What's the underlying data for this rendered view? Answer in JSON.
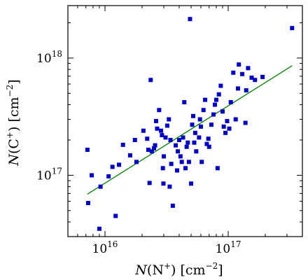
{
  "chart_data": {
    "type": "scatter",
    "title": "",
    "xlabel_parts": {
      "var": "N",
      "open": "(N",
      "sup": "+",
      "close": ")",
      "unit": " [cm",
      "unit_sup": "−2",
      "unit_close": "]"
    },
    "ylabel_parts": {
      "var": "N",
      "open": "(C",
      "sup": "+",
      "close": ")",
      "unit": " [cm",
      "unit_sup": "−2",
      "unit_close": "]"
    },
    "x_scale": "log",
    "y_scale": "log",
    "xlim": [
      5000000000000000.0,
      4e+17
    ],
    "ylim": [
      3e+16,
      2.8e+18
    ],
    "x_ticks": [
      {
        "value": 1e+16,
        "base": "10",
        "exp": "16"
      },
      {
        "value": 1e+17,
        "base": "10",
        "exp": "17"
      }
    ],
    "y_ticks": [
      {
        "value": 1e+17,
        "base": "10",
        "exp": "17"
      },
      {
        "value": 1e+18,
        "base": "10",
        "exp": "18"
      }
    ],
    "grid": false,
    "marker_color": "#0000cc",
    "fit_color": "#118811",
    "fit_line": {
      "x": [
        7200000000000000.0,
        3.3e+17
      ],
      "y": [
        6.9e+16,
        8.6e+17
      ]
    },
    "points": [
      {
        "x": 7200000000000000.0,
        "y": 1.65e+17
      },
      {
        "x": 7300000000000000.0,
        "y": 5.8e+16
      },
      {
        "x": 7800000000000000.0,
        "y": 1e+17
      },
      {
        "x": 9000000000000000.0,
        "y": 3.5e+16
      },
      {
        "x": 9200000000000000.0,
        "y": 8e+16
      },
      {
        "x": 1.07e+16,
        "y": 9.8e+16
      },
      {
        "x": 1.15e+16,
        "y": 1.18e+17
      },
      {
        "x": 1.22e+16,
        "y": 4.5e+16
      },
      {
        "x": 1.3e+16,
        "y": 1.23e+17
      },
      {
        "x": 1.4e+16,
        "y": 1.82e+17
      },
      {
        "x": 1.6e+16,
        "y": 1.48e+17
      },
      {
        "x": 1.75e+16,
        "y": 2e+17
      },
      {
        "x": 1.8e+16,
        "y": 1.3e+17
      },
      {
        "x": 2.05e+16,
        "y": 2.4e+17
      },
      {
        "x": 2.2e+16,
        "y": 2.05e+17
      },
      {
        "x": 2.25e+16,
        "y": 1.65e+17
      },
      {
        "x": 2.3e+16,
        "y": 8.6e+16
      },
      {
        "x": 2.35e+16,
        "y": 6.5e+17
      },
      {
        "x": 2.4e+16,
        "y": 1.6e+17
      },
      {
        "x": 2.5e+16,
        "y": 1.7e+17
      },
      {
        "x": 2.55e+16,
        "y": 1.8e+17
      },
      {
        "x": 2.6e+16,
        "y": 2.9e+17
      },
      {
        "x": 2.65e+16,
        "y": 2.5e+17
      },
      {
        "x": 2.75e+16,
        "y": 3.6e+17
      },
      {
        "x": 2.85e+16,
        "y": 2.4e+17
      },
      {
        "x": 2.9e+16,
        "y": 2.2e+17
      },
      {
        "x": 2.95e+16,
        "y": 1.15e+17
      },
      {
        "x": 2.98e+16,
        "y": 8.5e+16
      },
      {
        "x": 3e+16,
        "y": 1.45e+17
      },
      {
        "x": 3.1e+16,
        "y": 2.1e+17
      },
      {
        "x": 3.2e+16,
        "y": 2.65e+17
      },
      {
        "x": 3.3e+16,
        "y": 3e+17
      },
      {
        "x": 3.35e+16,
        "y": 8e+16
      },
      {
        "x": 3.4e+16,
        "y": 2e+17
      },
      {
        "x": 3.45e+16,
        "y": 1.25e+17
      },
      {
        "x": 3.55e+16,
        "y": 5.5e+16
      },
      {
        "x": 3.75e+16,
        "y": 1.8e+17
      },
      {
        "x": 3.85e+16,
        "y": 1.1e+17
      },
      {
        "x": 3.9e+16,
        "y": 1.6e+17
      },
      {
        "x": 4e+16,
        "y": 2e+17
      },
      {
        "x": 4.1e+16,
        "y": 1.45e+17
      },
      {
        "x": 4.2e+16,
        "y": 1.3e+17
      },
      {
        "x": 4.3e+16,
        "y": 2.1e+17
      },
      {
        "x": 4.4e+16,
        "y": 4.2e+17
      },
      {
        "x": 4.5e+16,
        "y": 1.15e+17
      },
      {
        "x": 4.6e+16,
        "y": 1.75e+17
      },
      {
        "x": 4.7e+16,
        "y": 1.9e+17
      },
      {
        "x": 4.8e+16,
        "y": 1.3e+17
      },
      {
        "x": 4.9e+16,
        "y": 2.15e+18
      },
      {
        "x": 5e+16,
        "y": 8.5e+16
      },
      {
        "x": 5.1e+16,
        "y": 2.7e+17
      },
      {
        "x": 5.2e+16,
        "y": 3.2e+17
      },
      {
        "x": 5.3e+16,
        "y": 1.9e+17
      },
      {
        "x": 5.4e+16,
        "y": 2.3e+17
      },
      {
        "x": 5.5e+16,
        "y": 1.6e+17
      },
      {
        "x": 5.8e+16,
        "y": 2.1e+17
      },
      {
        "x": 5.9e+16,
        "y": 3e+17
      },
      {
        "x": 6e+16,
        "y": 2.6e+17
      },
      {
        "x": 6.1e+16,
        "y": 1.3e+17
      },
      {
        "x": 6.3e+16,
        "y": 3.6e+17
      },
      {
        "x": 6.5e+16,
        "y": 4.4e+17
      },
      {
        "x": 6.7e+16,
        "y": 1.85e+17
      },
      {
        "x": 6.9e+16,
        "y": 2.05e+17
      },
      {
        "x": 7e+16,
        "y": 1.75e+17
      },
      {
        "x": 7.3e+16,
        "y": 2.7e+17
      },
      {
        "x": 7.6e+16,
        "y": 3.3e+17
      },
      {
        "x": 7.8e+16,
        "y": 4e+17
      },
      {
        "x": 8e+16,
        "y": 4.4e+17
      },
      {
        "x": 8.2e+16,
        "y": 1.15e+17
      },
      {
        "x": 8.4e+16,
        "y": 4.9e+17
      },
      {
        "x": 8.7e+16,
        "y": 5.8e+17
      },
      {
        "x": 9e+16,
        "y": 3.5e+17
      },
      {
        "x": 9.2e+16,
        "y": 2.6e+17
      },
      {
        "x": 9.5e+16,
        "y": 2.3e+17
      },
      {
        "x": 9.8e+16,
        "y": 2.9e+17
      },
      {
        "x": 1.02e+17,
        "y": 2.5e+17
      },
      {
        "x": 1.05e+17,
        "y": 4.2e+17
      },
      {
        "x": 1.1e+17,
        "y": 7.5e+17
      },
      {
        "x": 1.15e+17,
        "y": 3e+17
      },
      {
        "x": 1.2e+17,
        "y": 5.5e+17
      },
      {
        "x": 1.22e+17,
        "y": 8.8e+17
      },
      {
        "x": 1.3e+17,
        "y": 7.3e+17
      },
      {
        "x": 1.38e+17,
        "y": 2.8e+17
      },
      {
        "x": 1.4e+17,
        "y": 5.3e+17
      },
      {
        "x": 1.45e+17,
        "y": 8.2e+17
      },
      {
        "x": 1.55e+17,
        "y": 6.8e+17
      },
      {
        "x": 1.65e+17,
        "y": 6.5e+17
      },
      {
        "x": 1.9e+17,
        "y": 6.9e+17
      },
      {
        "x": 3.3e+17,
        "y": 1.8e+18
      }
    ]
  }
}
